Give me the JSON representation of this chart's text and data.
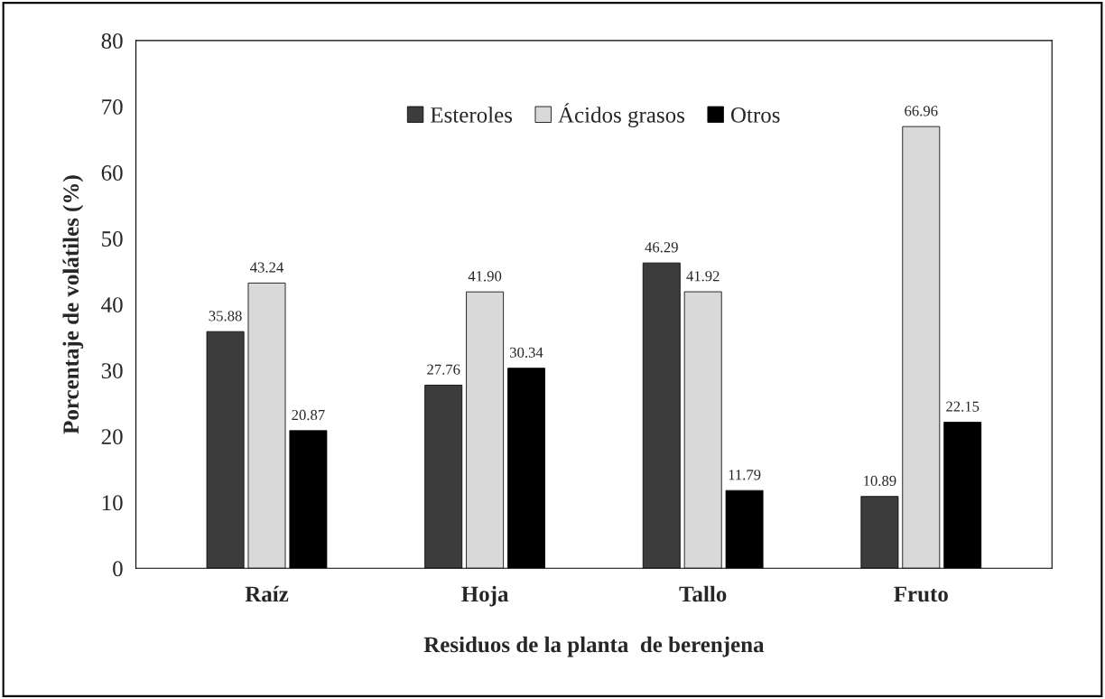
{
  "chart_data": {
    "type": "bar",
    "xlabel": "Residuos de la planta  de berenjena",
    "ylabel": "Porcentaje de volátiles (%)",
    "categories": [
      "Raíz",
      "Hoja",
      "Tallo",
      "Fruto"
    ],
    "series": [
      {
        "name": "Esteroles",
        "color": "#3c3c3c",
        "values": [
          35.88,
          27.76,
          46.29,
          10.89
        ],
        "value_labels": [
          "35.88",
          "27.76",
          "46.29",
          "10.89"
        ]
      },
      {
        "name": "Ácidos grasos",
        "color": "#d9d9d9",
        "values": [
          43.24,
          41.9,
          41.92,
          66.96
        ],
        "value_labels": [
          "43.24",
          "41.90",
          "41.92",
          "66.96"
        ]
      },
      {
        "name": "Otros",
        "color": "#000000",
        "values": [
          20.87,
          30.34,
          11.79,
          22.15
        ],
        "value_labels": [
          "20.87",
          "30.34",
          "11.79",
          "22.15"
        ]
      }
    ],
    "ylim": [
      0,
      80
    ],
    "yticks": [
      0,
      10,
      20,
      30,
      40,
      50,
      60,
      70,
      80
    ],
    "legend": "top",
    "grid": false
  }
}
